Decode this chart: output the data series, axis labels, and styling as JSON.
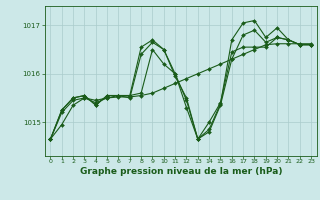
{
  "background_color": "#cce8e8",
  "line_color": "#1a5c1a",
  "grid_color": "#aacccc",
  "xlabel": "Graphe pression niveau de la mer (hPa)",
  "xlabel_fontsize": 6.5,
  "ylabel_ticks": [
    1015,
    1016,
    1017
  ],
  "xlim": [
    -0.5,
    23.5
  ],
  "ylim": [
    1014.3,
    1017.4
  ],
  "xticks": [
    0,
    1,
    2,
    3,
    4,
    5,
    6,
    7,
    8,
    9,
    10,
    11,
    12,
    13,
    14,
    15,
    16,
    17,
    18,
    19,
    20,
    21,
    22,
    23
  ],
  "series": [
    [
      1014.65,
      1014.95,
      1015.35,
      1015.5,
      1015.45,
      1015.5,
      1015.55,
      1015.5,
      1016.4,
      1016.65,
      1016.5,
      1015.95,
      1015.5,
      1014.65,
      1014.8,
      1015.35,
      1016.3,
      1016.8,
      1016.9,
      1016.65,
      1016.75,
      1016.7,
      1016.6,
      1016.6
    ],
    [
      1014.65,
      1015.25,
      1015.5,
      1015.55,
      1015.35,
      1015.55,
      1015.55,
      1015.55,
      1015.6,
      1016.5,
      1016.2,
      1016.0,
      1015.3,
      1014.65,
      1015.0,
      1015.4,
      1016.45,
      1016.55,
      1016.55,
      1016.55,
      1016.75,
      1016.7,
      1016.6,
      1016.6
    ],
    [
      1014.65,
      1015.25,
      1015.5,
      1015.55,
      1015.35,
      1015.55,
      1015.55,
      1015.55,
      1016.55,
      1016.7,
      1016.5,
      1016.0,
      1015.45,
      1014.65,
      1014.85,
      1015.38,
      1016.7,
      1017.05,
      1017.1,
      1016.75,
      1016.95,
      1016.7,
      1016.6,
      1016.6
    ],
    [
      1014.65,
      1015.2,
      1015.45,
      1015.5,
      1015.4,
      1015.5,
      1015.52,
      1015.52,
      1015.55,
      1015.6,
      1015.7,
      1015.8,
      1015.9,
      1016.0,
      1016.1,
      1016.2,
      1016.3,
      1016.4,
      1016.5,
      1016.6,
      1016.62,
      1016.62,
      1016.62,
      1016.62
    ]
  ]
}
